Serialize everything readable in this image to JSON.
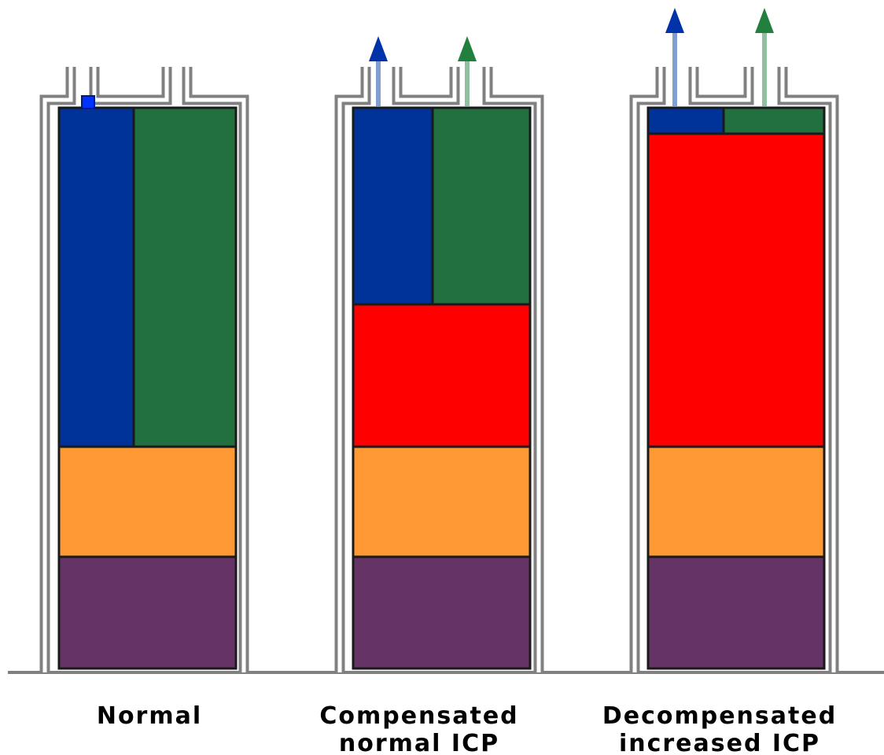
{
  "panels": [
    {
      "label": [
        "Normal"
      ]
    },
    {
      "label": [
        "Compensated",
        "normal ICP"
      ]
    },
    {
      "label": [
        "Decompensated",
        "increased ICP"
      ]
    }
  ]
}
